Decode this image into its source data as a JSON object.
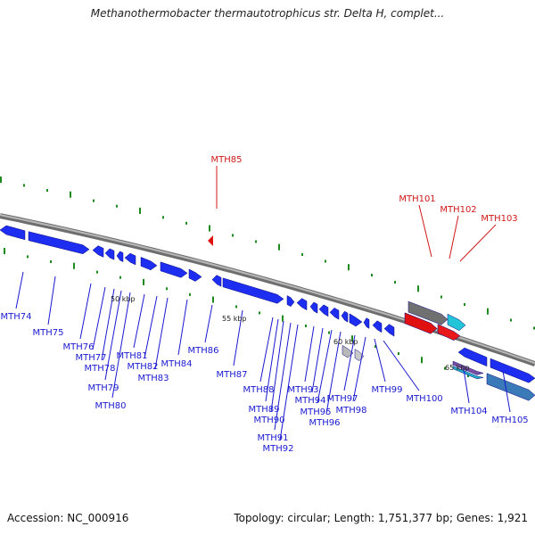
{
  "title": "Methanothermobacter thermautotrophicus str. Delta H, complet...",
  "footer": {
    "accession": "Accession: NC_000916",
    "summary": "Topology: circular; Length: 1,751,377 bp; Genes: 1,921"
  },
  "colors": {
    "backbone": "#8a8a8a",
    "forward_gene": "#1e2ef0",
    "label_blue": "#1a1ad0",
    "label_red": "#d01818",
    "tick_green": "#1d8a1d"
  },
  "scale_labels": [
    "50 kbp",
    "55 kbp",
    "60 kbp",
    "65 kbp"
  ],
  "gene_labels": {
    "above": [
      "MTH85",
      "MTH101",
      "MTH102",
      "MTH103"
    ],
    "below": [
      "MTH74",
      "MTH75",
      "MTH76",
      "MTH77",
      "MTH78",
      "MTH79",
      "MTH80",
      "MTH81",
      "MTH82",
      "MTH83",
      "MTH84",
      "MTH86",
      "MTH87",
      "MTH88",
      "MTH89",
      "MTH90",
      "MTH91",
      "MTH92",
      "MTH93",
      "MTH94",
      "MTH95",
      "MTH96",
      "MTH97",
      "MTH98",
      "MTH99",
      "MTH100",
      "MTH104",
      "MTH105"
    ]
  }
}
